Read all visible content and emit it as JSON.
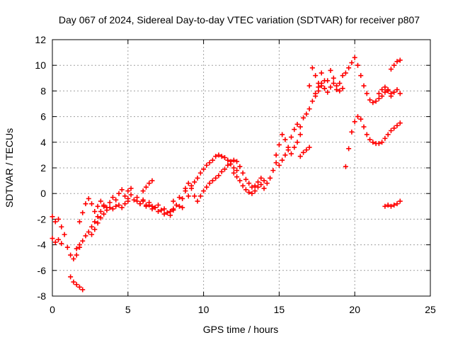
{
  "chart_data": {
    "type": "scatter",
    "title": "Day 067 of 2024, Sidereal Day-to-day VTEC variation (SDTVAR) for receiver p807",
    "xlabel": "GPS time / hours",
    "ylabel": "SDTVAR / TECUs",
    "xlim": [
      0,
      25
    ],
    "ylim": [
      -8,
      12
    ],
    "xticks": [
      0,
      5,
      10,
      15,
      20,
      25
    ],
    "yticks": [
      -8,
      -6,
      -4,
      -2,
      0,
      2,
      4,
      6,
      8,
      10,
      12
    ],
    "grid": true,
    "marker": "+",
    "color": "#ff0000",
    "series": [
      {
        "x": [
          0.0,
          0.2,
          0.4,
          0.6,
          0.8,
          1.0,
          1.2,
          1.4,
          1.6,
          1.8
        ],
        "y": [
          -1.8,
          -2.2,
          -2.0,
          -2.6,
          -3.2,
          -4.2,
          -4.8,
          -5.1,
          -4.8,
          -4.2
        ]
      },
      {
        "x": [
          0.0,
          0.2,
          0.4,
          0.6
        ],
        "y": [
          -3.5,
          -3.8,
          -3.6,
          -3.9
        ]
      },
      {
        "x": [
          1.2,
          1.4,
          1.6,
          1.8,
          2.0
        ],
        "y": [
          -6.5,
          -6.9,
          -7.1,
          -7.3,
          -7.5
        ]
      },
      {
        "x": [
          1.8,
          2.0,
          2.2,
          2.4,
          2.6,
          2.8,
          3.0,
          3.2,
          3.4,
          3.6,
          3.8,
          4.0,
          4.2,
          4.4,
          4.6,
          4.8,
          5.0,
          5.2
        ],
        "y": [
          -2.2,
          -1.5,
          -0.8,
          -0.4,
          -0.8,
          -1.4,
          -1.0,
          -0.6,
          -0.9,
          -1.1,
          -0.7,
          -0.3,
          -0.5,
          0.0,
          0.3,
          -0.2,
          0.2,
          0.4
        ]
      },
      {
        "x": [
          1.6,
          1.8,
          2.0,
          2.2,
          2.4,
          2.6,
          2.8,
          3.0,
          3.2,
          3.4
        ],
        "y": [
          -4.3,
          -4.0,
          -3.7,
          -3.3,
          -3.0,
          -2.6,
          -2.2,
          -1.8,
          -1.4,
          -1.0
        ]
      },
      {
        "x": [
          2.6,
          2.8,
          3.0,
          3.2,
          3.4,
          3.6,
          3.8,
          4.0,
          4.2,
          4.4,
          4.6,
          4.8,
          5.0
        ],
        "y": [
          -3.2,
          -2.8,
          -2.3,
          -1.9,
          -1.6,
          -1.3,
          -1.1,
          -1.2,
          -1.0,
          -0.9,
          -1.1,
          -0.8,
          -0.6
        ]
      },
      {
        "x": [
          5.0,
          5.2,
          5.4,
          5.6,
          5.8,
          6.0,
          6.2,
          6.4,
          6.6,
          6.8,
          7.0,
          7.2,
          7.4,
          7.6,
          7.8,
          8.0
        ],
        "y": [
          -0.4,
          -0.1,
          -0.5,
          -0.3,
          -0.8,
          -0.6,
          -1.0,
          -0.9,
          -1.2,
          -1.1,
          -0.9,
          -1.3,
          -1.2,
          -1.5,
          -1.4,
          -1.2
        ]
      },
      {
        "x": [
          5.6,
          5.8,
          6.0,
          6.2,
          6.4,
          6.6,
          6.8,
          7.0,
          7.2,
          7.4,
          7.6,
          7.8,
          8.0
        ],
        "y": [
          -0.6,
          -0.8,
          -0.5,
          -0.9,
          -0.7,
          -1.0,
          -1.1,
          -1.4,
          -1.3,
          -1.6,
          -1.5,
          -1.7,
          -1.3
        ]
      },
      {
        "x": [
          6.0,
          6.2,
          6.4,
          6.6
        ],
        "y": [
          0.2,
          0.5,
          0.8,
          1.0
        ]
      },
      {
        "x": [
          8.0,
          8.2,
          8.4,
          8.6,
          8.8,
          9.0,
          9.2,
          9.4,
          9.6,
          9.8,
          10.0,
          10.2,
          10.4,
          10.6,
          10.8,
          11.0,
          11.2,
          11.4,
          11.6,
          11.8,
          12.0,
          12.2
        ],
        "y": [
          -0.6,
          -0.9,
          -0.3,
          -1.1,
          0.4,
          -0.2,
          0.6,
          0.9,
          1.2,
          1.6,
          1.9,
          2.2,
          2.4,
          2.6,
          2.9,
          3.0,
          2.9,
          2.8,
          2.6,
          2.3,
          2.0,
          1.8
        ]
      },
      {
        "x": [
          8.4,
          8.6,
          8.8,
          9.0,
          9.2,
          9.4,
          9.6,
          9.8
        ],
        "y": [
          -1.0,
          -0.4,
          0.2,
          0.8,
          0.4,
          -0.2,
          -0.6,
          -0.2
        ]
      },
      {
        "x": [
          10.0,
          10.2,
          10.4,
          10.6,
          10.8,
          11.0,
          11.2,
          11.4,
          11.6,
          11.8,
          12.0,
          12.2,
          12.4,
          12.6,
          12.8,
          13.0,
          13.2,
          13.4,
          13.6,
          13.8,
          14.0,
          14.2,
          14.4,
          14.6,
          14.8
        ],
        "y": [
          0.2,
          0.5,
          0.8,
          1.0,
          1.2,
          1.4,
          1.7,
          1.9,
          2.2,
          2.5,
          2.6,
          2.5,
          2.1,
          1.6,
          1.1,
          0.8,
          0.5,
          0.6,
          0.9,
          1.2,
          1.0,
          0.8,
          1.2,
          1.8,
          2.4
        ]
      },
      {
        "x": [
          12.0,
          12.2,
          12.4,
          12.6,
          12.8,
          13.0,
          13.2,
          13.4,
          13.6,
          13.8,
          14.0
        ],
        "y": [
          1.6,
          1.3,
          1.0,
          0.6,
          0.3,
          0.1,
          0.0,
          0.2,
          0.5,
          0.7,
          0.4
        ]
      },
      {
        "x": [
          14.8,
          15.0,
          15.2,
          15.4,
          15.6,
          15.8,
          16.0,
          16.2,
          16.4,
          16.6,
          16.8,
          17.0,
          17.2,
          17.4,
          17.6,
          17.8,
          18.0
        ],
        "y": [
          3.0,
          3.8,
          4.6,
          4.2,
          3.6,
          4.4,
          5.0,
          5.4,
          5.2,
          5.9,
          6.2,
          6.6,
          7.2,
          7.8,
          8.3,
          8.6,
          8.8
        ]
      },
      {
        "x": [
          15.0,
          15.2,
          15.4,
          15.6,
          15.8,
          16.0,
          16.2,
          16.4
        ],
        "y": [
          2.2,
          2.6,
          3.0,
          3.4,
          3.1,
          3.6,
          4.0,
          4.6
        ]
      },
      {
        "x": [
          16.4,
          16.6,
          16.8,
          17.0
        ],
        "y": [
          2.9,
          3.2,
          3.4,
          3.6
        ]
      },
      {
        "x": [
          17.0,
          17.2,
          17.4,
          17.6,
          17.8,
          18.0,
          18.2,
          18.4,
          18.6,
          18.8,
          19.0,
          19.2,
          19.4,
          19.6,
          19.8,
          20.0,
          20.2,
          20.4,
          20.6,
          20.8,
          21.0,
          21.2,
          21.4,
          21.6,
          21.8,
          22.0,
          22.2,
          22.4
        ],
        "y": [
          8.4,
          9.8,
          9.2,
          8.6,
          9.4,
          8.2,
          8.8,
          9.6,
          9.0,
          8.1,
          8.6,
          9.2,
          9.4,
          9.8,
          10.2,
          10.6,
          10.0,
          9.2,
          8.4,
          7.8,
          7.3,
          7.1,
          7.2,
          7.4,
          7.6,
          7.9,
          8.1,
          7.8
        ]
      },
      {
        "x": [
          17.4,
          17.6,
          17.8,
          18.0,
          18.2,
          18.4,
          18.6,
          18.8,
          19.0,
          19.2
        ],
        "y": [
          7.6,
          8.0,
          8.4,
          8.2,
          7.9,
          8.3,
          8.6,
          8.4,
          8.0,
          8.2
        ]
      },
      {
        "x": [
          21.6,
          21.8,
          22.0,
          22.2,
          22.4,
          22.6,
          22.8,
          23.0
        ],
        "y": [
          7.8,
          8.1,
          8.3,
          8.0,
          7.6,
          7.9,
          8.1,
          7.8
        ]
      },
      {
        "x": [
          19.4,
          19.6,
          19.8,
          20.0,
          20.2,
          20.4,
          20.6,
          20.8,
          21.0,
          21.2,
          21.4,
          21.6,
          21.8,
          22.0,
          22.2,
          22.4,
          22.6,
          22.8,
          23.0
        ],
        "y": [
          2.1,
          3.5,
          4.8,
          5.6,
          6.0,
          5.8,
          5.2,
          4.6,
          4.2,
          4.0,
          3.9,
          3.9,
          4.0,
          4.3,
          4.6,
          4.9,
          5.1,
          5.3,
          5.5
        ]
      },
      {
        "x": [
          22.4,
          22.6,
          22.8,
          23.0
        ],
        "y": [
          9.7,
          10.0,
          10.3,
          10.4
        ]
      },
      {
        "x": [
          22.0,
          22.2,
          22.4,
          22.6,
          22.8,
          23.0
        ],
        "y": [
          -1.0,
          -0.9,
          -1.0,
          -0.9,
          -0.8,
          -0.6
        ]
      }
    ]
  }
}
